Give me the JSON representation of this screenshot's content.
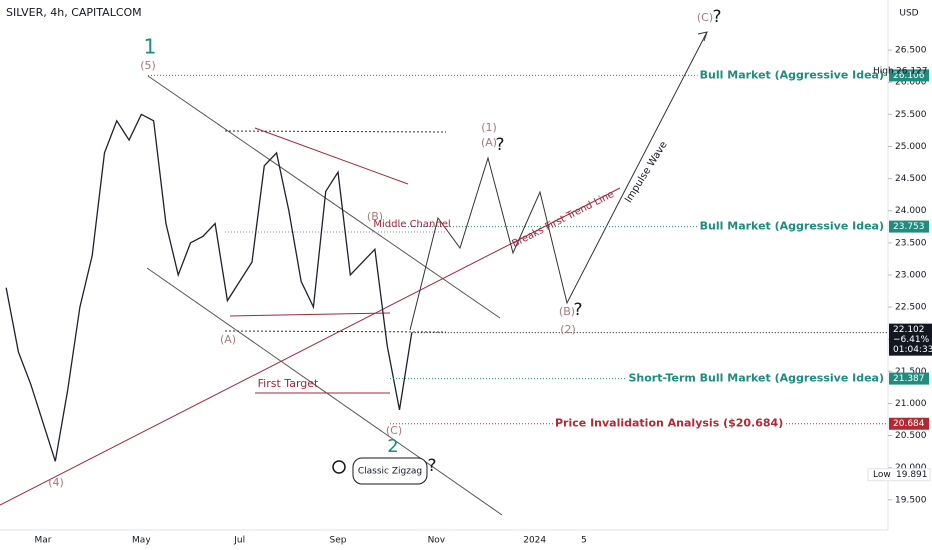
{
  "chart_data": {
    "type": "line",
    "title": "SILVER, 4h, CAPITALCOM",
    "currency": "USD",
    "categories": [
      null,
      null,
      null,
      "Mar",
      null,
      null,
      null,
      null,
      null,
      null,
      null,
      "May",
      null,
      null,
      null,
      null,
      null,
      null,
      null,
      "Jul",
      null,
      null,
      null,
      null,
      null,
      null,
      null,
      "Sep",
      null,
      null,
      null,
      null,
      null,
      null,
      null,
      "Nov",
      null,
      null,
      null,
      null,
      null,
      null,
      null,
      "2024",
      null,
      null,
      null,
      "5",
      null,
      null,
      null,
      null,
      null,
      null,
      null,
      null,
      null,
      null,
      null,
      null,
      null,
      null,
      null,
      null,
      null,
      null,
      null,
      null,
      null,
      null,
      null,
      null
    ],
    "series": [
      {
        "name": "SILVER",
        "color": "#1e222d",
        "values": [
          22.8,
          21.8,
          21.3,
          20.7,
          20.1,
          21.2,
          22.5,
          23.3,
          24.9,
          25.4,
          25.1,
          25.5,
          25.4,
          23.8,
          23.0,
          23.5,
          23.6,
          23.8,
          22.6,
          22.9,
          23.2,
          24.7,
          24.9,
          24.0,
          22.9,
          22.5,
          24.3,
          24.6,
          23.0,
          23.2,
          23.4,
          21.9,
          20.9,
          22.102,
          null,
          null,
          null,
          null,
          null,
          null,
          null,
          null,
          null,
          null,
          null,
          null,
          null,
          null,
          null,
          null,
          null,
          null,
          null,
          null,
          null,
          null,
          null,
          null,
          null,
          null,
          null,
          null,
          null,
          null,
          null,
          null,
          null,
          null,
          null,
          null,
          null,
          null
        ]
      }
    ],
    "last_change": "−6.41%",
    "countdown": "01:04:33",
    "ylim": [
      19.03,
      27.28
    ],
    "yticks": [
      {
        "value": 19.5,
        "label": "19.500"
      },
      {
        "value": 20,
        "label": "20.000"
      },
      {
        "value": 20.5,
        "label": "20.500"
      },
      {
        "value": 21,
        "label": "21.000"
      },
      {
        "value": 21.5,
        "label": "21.500"
      },
      {
        "value": 22,
        "label": "22.000"
      },
      {
        "value": 22.5,
        "label": "22.500"
      },
      {
        "value": 23,
        "label": "23.000"
      },
      {
        "value": 23.5,
        "label": "23.500"
      },
      {
        "value": 24,
        "label": "24.000"
      },
      {
        "value": 24.5,
        "label": "24.500"
      },
      {
        "value": 25,
        "label": "25.000"
      },
      {
        "value": 25.5,
        "label": "25.500"
      },
      {
        "value": 26,
        "label": "26.000"
      },
      {
        "value": 26.5,
        "label": "26.500"
      }
    ],
    "high_label": "High",
    "high": 26.127,
    "low_label": "Low",
    "low": 19.891,
    "levels": [
      {
        "value": 26.106,
        "label": "Bull Market (Aggressive Idea)",
        "color": "#1e8c7e"
      },
      {
        "value": 23.753,
        "label": "Bull Market (Aggressive Idea)",
        "color": "#1e8c7e"
      },
      {
        "value": 21.387,
        "label": "Short-Term Bull Market (Aggressive Idea)",
        "color": "#1e8c7e"
      },
      {
        "value": 20.684,
        "label": "Price Invalidation Analysis ($20.684)",
        "color": "#b22833"
      }
    ],
    "annotations": [
      "1",
      "(5)",
      "(4)",
      "(A)",
      "(B)",
      "(C)",
      "2",
      "(1)",
      "(A)",
      "?",
      "(B)",
      "?",
      "(2)",
      "(C)",
      "?",
      "Middle Channel",
      "Breaks First Trend Line",
      "Impulse Wave",
      "First Target",
      "Classic Zigzag",
      "?"
    ]
  }
}
